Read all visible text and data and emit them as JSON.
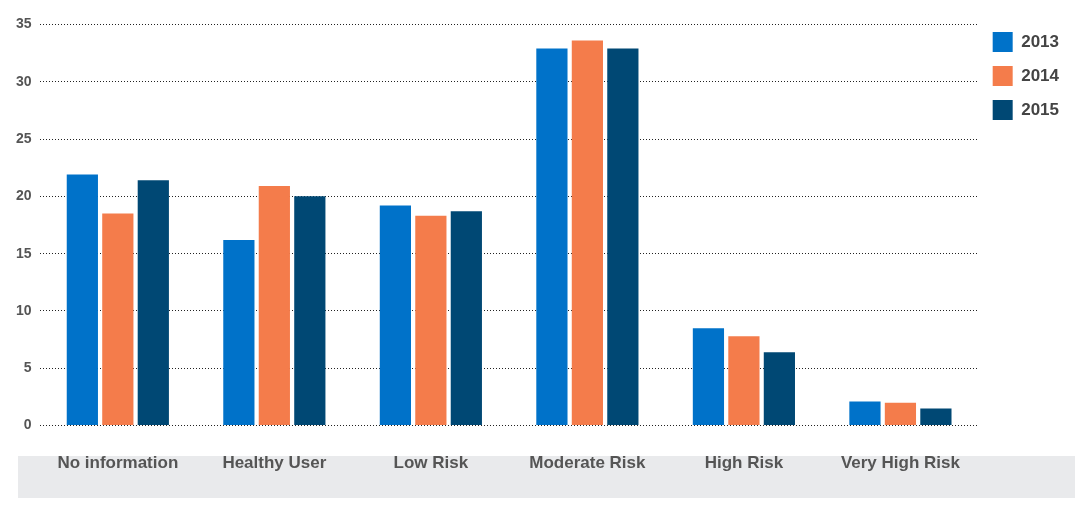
{
  "chart_data": {
    "type": "bar",
    "categories": [
      "No information",
      "Healthy User",
      "Low Risk",
      "Moderate Risk",
      "High Risk",
      "Very High Risk"
    ],
    "series": [
      {
        "name": "2013",
        "color": "#0072c9",
        "values": [
          21.9,
          16.2,
          19.2,
          32.9,
          8.5,
          2.1
        ]
      },
      {
        "name": "2014",
        "color": "#f47c4b",
        "values": [
          18.5,
          20.9,
          18.3,
          33.6,
          7.8,
          2.0
        ]
      },
      {
        "name": "2015",
        "color": "#004874",
        "values": [
          21.4,
          20.0,
          18.7,
          32.9,
          6.4,
          1.5
        ]
      }
    ],
    "ylim": [
      0,
      35
    ],
    "yticks": [
      0,
      5,
      10,
      15,
      20,
      25,
      30,
      35
    ],
    "grid": "y",
    "legend": "top right"
  }
}
